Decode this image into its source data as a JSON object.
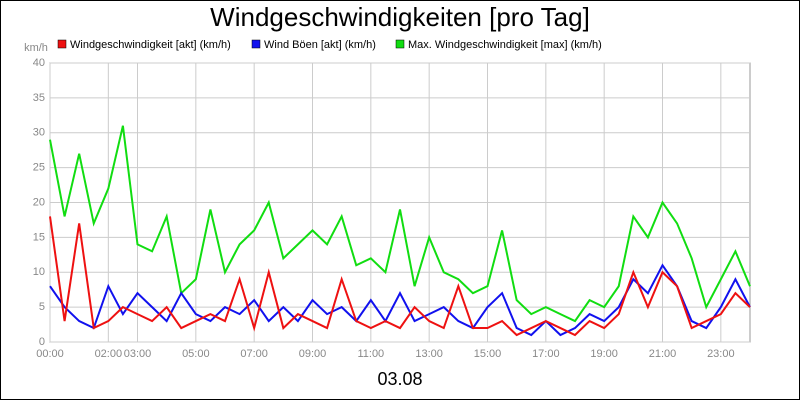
{
  "chart_data": {
    "type": "line",
    "title": "Windgeschwindigkeiten [pro Tag]",
    "ylabel": "km/h",
    "xlabel": "03.08",
    "x": [
      0,
      0.5,
      1,
      1.5,
      2,
      2.5,
      3,
      3.5,
      4,
      4.5,
      5,
      5.5,
      6,
      6.5,
      7,
      7.5,
      8,
      8.5,
      9,
      9.5,
      10,
      10.5,
      11,
      11.5,
      12,
      12.5,
      13,
      13.5,
      14,
      14.5,
      15,
      15.5,
      16,
      16.5,
      17,
      17.5,
      18,
      18.5,
      19,
      19.5,
      20,
      20.5,
      21,
      21.5,
      22,
      22.5,
      23,
      23.5,
      24
    ],
    "series": [
      {
        "name": "Windgeschwindigkeit [akt] (km/h)",
        "color": "#ee1111",
        "values": [
          18,
          3,
          17,
          2,
          3,
          5,
          4,
          3,
          5,
          2,
          3,
          4,
          3,
          9,
          2,
          10,
          2,
          4,
          3,
          2,
          9,
          3,
          2,
          3,
          2,
          5,
          3,
          2,
          8,
          2,
          2,
          3,
          1,
          2,
          3,
          2,
          1,
          3,
          2,
          4,
          10,
          5,
          10,
          8,
          2,
          3,
          4,
          7,
          5
        ]
      },
      {
        "name": "Wind Böen [akt] (km/h)",
        "color": "#1111ee",
        "values": [
          8,
          5,
          3,
          2,
          8,
          4,
          7,
          5,
          3,
          7,
          4,
          3,
          5,
          4,
          6,
          3,
          5,
          3,
          6,
          4,
          5,
          3,
          6,
          3,
          7,
          3,
          4,
          5,
          3,
          2,
          5,
          7,
          2,
          1,
          3,
          1,
          2,
          4,
          3,
          5,
          9,
          7,
          11,
          8,
          3,
          2,
          5,
          9,
          5
        ]
      },
      {
        "name": "Max. Windgeschwindigkeit [max] (km/h)",
        "color": "#11dd11",
        "values": [
          29,
          18,
          27,
          17,
          22,
          31,
          14,
          13,
          18,
          7,
          9,
          19,
          10,
          14,
          16,
          20,
          12,
          14,
          16,
          14,
          18,
          11,
          12,
          10,
          19,
          8,
          15,
          10,
          9,
          7,
          8,
          16,
          6,
          4,
          5,
          4,
          3,
          6,
          5,
          8,
          18,
          15,
          20,
          17,
          12,
          5,
          9,
          13,
          8
        ]
      }
    ],
    "xlim": [
      0,
      24
    ],
    "xticks": [
      {
        "value": 0,
        "label": "00:00"
      },
      {
        "value": 2,
        "label": "02:00"
      },
      {
        "value": 3,
        "label": "03:00"
      },
      {
        "value": 5,
        "label": "05:00"
      },
      {
        "value": 7,
        "label": "07:00"
      },
      {
        "value": 9,
        "label": "09:00"
      },
      {
        "value": 11,
        "label": "11:00"
      },
      {
        "value": 13,
        "label": "13:00"
      },
      {
        "value": 15,
        "label": "15:00"
      },
      {
        "value": 17,
        "label": "17:00"
      },
      {
        "value": 19,
        "label": "19:00"
      },
      {
        "value": 21,
        "label": "21:00"
      },
      {
        "value": 23,
        "label": "23:00"
      }
    ],
    "ylim": [
      0,
      40
    ],
    "yticks": [
      0,
      5,
      10,
      15,
      20,
      25,
      30,
      35,
      40
    ],
    "grid": true
  }
}
